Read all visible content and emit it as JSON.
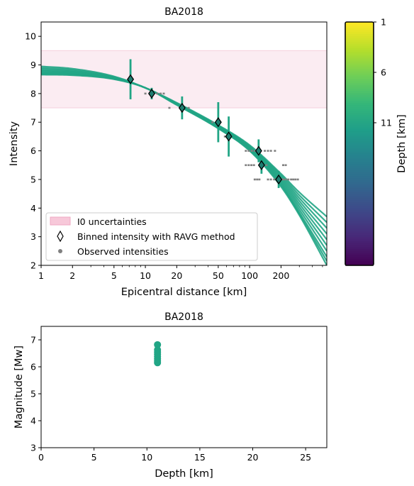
{
  "chart_data": [
    {
      "type": "scatter",
      "title": "BA2018",
      "xlabel": "Epicentral distance [km]",
      "ylabel": "Intensity",
      "x_scale": "log",
      "xlim": [
        1,
        550
      ],
      "ylim": [
        2,
        10.5
      ],
      "x_ticks": [
        1,
        2,
        5,
        10,
        20,
        50,
        100,
        200
      ],
      "x_tick_labels": [
        "1",
        "2",
        "5",
        "10",
        "20",
        "50",
        "100",
        "200"
      ],
      "y_ticks": [
        2,
        3,
        4,
        5,
        6,
        7,
        8,
        9,
        10
      ],
      "y_tick_labels": [
        "2",
        "3",
        "4",
        "5",
        "6",
        "7",
        "8",
        "9",
        "10"
      ],
      "grid": false,
      "legend_position": "lower-left",
      "i0_uncertainty_band": [
        7.5,
        9.5
      ],
      "legend": {
        "band": "I0 uncertainties",
        "binned": "Binned intensity with RAVG method",
        "observed": "Observed intensities"
      },
      "binned_intensity": [
        {
          "x": 7.2,
          "y": 8.5,
          "err_low": 7.8,
          "err_high": 9.2
        },
        {
          "x": 11.5,
          "y": 8.0,
          "err_low": 7.8,
          "err_high": 8.2
        },
        {
          "x": 22.5,
          "y": 7.5,
          "err_low": 7.1,
          "err_high": 7.9
        },
        {
          "x": 50,
          "y": 7.0,
          "err_low": 6.3,
          "err_high": 7.7
        },
        {
          "x": 63,
          "y": 6.5,
          "err_low": 5.8,
          "err_high": 7.2
        },
        {
          "x": 122,
          "y": 6.0,
          "err_low": 5.6,
          "err_high": 6.4
        },
        {
          "x": 130,
          "y": 5.5,
          "err_low": 5.2,
          "err_high": 5.8
        },
        {
          "x": 190,
          "y": 5.0,
          "err_low": 4.7,
          "err_high": 5.3
        }
      ],
      "observed_intensities": [
        {
          "x": 10,
          "y": 8
        },
        {
          "x": 11,
          "y": 8
        },
        {
          "x": 12,
          "y": 8
        },
        {
          "x": 13,
          "y": 8
        },
        {
          "x": 14,
          "y": 8
        },
        {
          "x": 15,
          "y": 8
        },
        {
          "x": 17,
          "y": 7.5
        },
        {
          "x": 26,
          "y": 7.5
        },
        {
          "x": 44,
          "y": 7
        },
        {
          "x": 58,
          "y": 6.5
        },
        {
          "x": 66,
          "y": 6.5
        },
        {
          "x": 92,
          "y": 6
        },
        {
          "x": 98,
          "y": 6
        },
        {
          "x": 105,
          "y": 6
        },
        {
          "x": 112,
          "y": 6
        },
        {
          "x": 118,
          "y": 6
        },
        {
          "x": 140,
          "y": 6
        },
        {
          "x": 150,
          "y": 6
        },
        {
          "x": 160,
          "y": 6
        },
        {
          "x": 175,
          "y": 6
        },
        {
          "x": 92,
          "y": 5.5
        },
        {
          "x": 98,
          "y": 5.5
        },
        {
          "x": 104,
          "y": 5.5
        },
        {
          "x": 110,
          "y": 5.5
        },
        {
          "x": 145,
          "y": 5.5
        },
        {
          "x": 210,
          "y": 5.5
        },
        {
          "x": 222,
          "y": 5.5
        },
        {
          "x": 112,
          "y": 5
        },
        {
          "x": 118,
          "y": 5
        },
        {
          "x": 124,
          "y": 5
        },
        {
          "x": 150,
          "y": 5
        },
        {
          "x": 160,
          "y": 5
        },
        {
          "x": 172,
          "y": 5
        },
        {
          "x": 185,
          "y": 5
        },
        {
          "x": 200,
          "y": 5
        },
        {
          "x": 210,
          "y": 5
        },
        {
          "x": 222,
          "y": 5
        },
        {
          "x": 235,
          "y": 5
        },
        {
          "x": 250,
          "y": 5
        },
        {
          "x": 262,
          "y": 5
        },
        {
          "x": 275,
          "y": 5
        },
        {
          "x": 290,
          "y": 5
        }
      ],
      "attenuation_curves": {
        "color": "#21a585",
        "count": 10,
        "anchors": [
          {
            "x": 1,
            "y": [
              8.95,
              8.9,
              8.86,
              8.82,
              8.79,
              8.76,
              8.73,
              8.7,
              8.68,
              8.66
            ]
          },
          {
            "x": 2,
            "y": [
              8.87,
              8.83,
              8.8,
              8.77,
              8.75,
              8.72,
              8.7,
              8.68,
              8.66,
              8.64
            ]
          },
          {
            "x": 5,
            "y": [
              8.6,
              8.58,
              8.56,
              8.55,
              8.54,
              8.53,
              8.52,
              8.52,
              8.51,
              8.5
            ]
          },
          {
            "x": 10,
            "y": [
              8.2,
              8.2,
              8.2,
              8.2,
              8.2,
              8.2,
              8.2,
              8.2,
              8.2,
              8.2
            ]
          },
          {
            "x": 20,
            "y": [
              7.68,
              7.66,
              7.65,
              7.64,
              7.64,
              7.63,
              7.62,
              7.62,
              7.61,
              7.6
            ]
          },
          {
            "x": 50,
            "y": [
              6.9,
              6.88,
              6.86,
              6.84,
              6.83,
              6.82,
              6.81,
              6.8,
              6.79,
              6.78
            ]
          },
          {
            "x": 100,
            "y": [
              6.2,
              6.17,
              6.15,
              6.12,
              6.1,
              6.08,
              6.06,
              6.04,
              6.02,
              6.0
            ]
          },
          {
            "x": 200,
            "y": [
              5.2,
              5.15,
              5.1,
              5.05,
              5.0,
              4.95,
              4.9,
              4.85,
              4.8,
              4.75
            ]
          },
          {
            "x": 300,
            "y": [
              4.55,
              4.45,
              4.35,
              4.25,
              4.15,
              4.05,
              3.95,
              3.85,
              3.8,
              3.75
            ]
          },
          {
            "x": 550,
            "y": [
              3.7,
              3.5,
              3.3,
              3.1,
              2.9,
              2.7,
              2.5,
              2.3,
              2.15,
              2.0
            ]
          }
        ]
      }
    },
    {
      "type": "scatter",
      "title": "BA2018",
      "xlabel": "Depth [km]",
      "ylabel": "Magnitude [Mw]",
      "xlim": [
        0,
        27
      ],
      "ylim": [
        3,
        7.5
      ],
      "x_ticks": [
        0,
        5,
        10,
        15,
        20,
        25
      ],
      "x_tick_labels": [
        "0",
        "5",
        "10",
        "15",
        "20",
        "25"
      ],
      "y_ticks": [
        3,
        4,
        5,
        6,
        7
      ],
      "y_tick_labels": [
        "3",
        "4",
        "5",
        "6",
        "7"
      ],
      "grid": false,
      "color": "#21a585",
      "points": [
        {
          "x": 11,
          "y": 6.15
        },
        {
          "x": 11,
          "y": 6.22
        },
        {
          "x": 11,
          "y": 6.3
        },
        {
          "x": 11,
          "y": 6.38
        },
        {
          "x": 11,
          "y": 6.47
        },
        {
          "x": 11,
          "y": 6.55
        },
        {
          "x": 11,
          "y": 6.63
        },
        {
          "x": 11,
          "y": 6.82
        }
      ]
    }
  ],
  "colorbar": {
    "label": "Depth [km]",
    "tick_labels": [
      "1",
      "6",
      "11"
    ],
    "colormap": "viridis",
    "colors": [
      "#fde725",
      "#b5de2b",
      "#6ece58",
      "#35b779",
      "#1f9e89",
      "#26828e",
      "#31688e",
      "#3e4989",
      "#482878",
      "#440154"
    ]
  }
}
